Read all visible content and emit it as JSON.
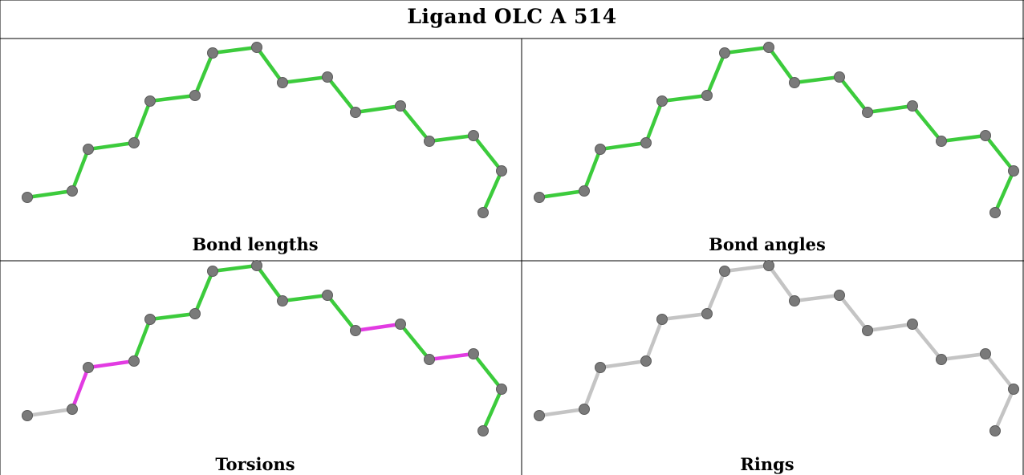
{
  "title": "Ligand OLC A 514",
  "colors": {
    "green_bond": "#3ccb3c",
    "magenta_bond": "#e23be2",
    "gray_bond": "#c4c4c4",
    "atom": "#7a7a7a",
    "grid_line": "#000000"
  },
  "panels": [
    {
      "label": "Bond lengths",
      "bond_colors": [
        "green",
        "green",
        "green",
        "green",
        "green",
        "green",
        "green",
        "green",
        "green",
        "green",
        "green",
        "green",
        "green",
        "green",
        "green",
        "green",
        "green"
      ]
    },
    {
      "label": "Bond angles",
      "bond_colors": [
        "green",
        "green",
        "green",
        "green",
        "green",
        "green",
        "green",
        "green",
        "green",
        "green",
        "green",
        "green",
        "green",
        "green",
        "green",
        "green",
        "green"
      ]
    },
    {
      "label": "Torsions",
      "bond_colors": [
        "gray",
        "magenta",
        "magenta",
        "green",
        "green",
        "green",
        "green",
        "green",
        "green",
        "green",
        "magenta",
        "green",
        "magenta",
        "green",
        "green",
        "green",
        "gray"
      ]
    },
    {
      "label": "Rings",
      "bond_colors": [
        "gray",
        "gray",
        "gray",
        "gray",
        "gray",
        "gray",
        "gray",
        "gray",
        "gray",
        "gray",
        "gray",
        "gray",
        "gray",
        "gray",
        "gray",
        "gray",
        "gray"
      ]
    }
  ]
}
